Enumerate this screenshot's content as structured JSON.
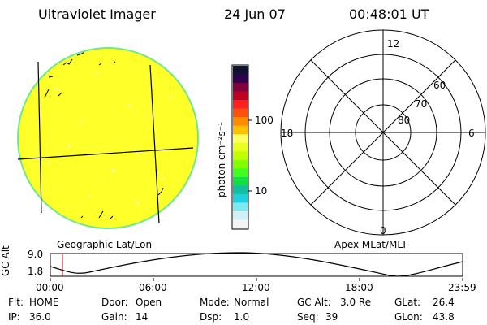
{
  "header": {
    "title": "Ultraviolet Imager",
    "date": "24 Jun 07",
    "time": "00:48:01 UT"
  },
  "colorbar": {
    "unit_label": "photon cm⁻²s⁻¹",
    "ticks": [
      "100",
      "10"
    ],
    "colors": [
      "#101030",
      "#300050",
      "#800040",
      "#c00020",
      "#ff2020",
      "#ff5010",
      "#ff8c00",
      "#ffc000",
      "#ffff60",
      "#e8ff20",
      "#c0ff00",
      "#80ff00",
      "#40ff20",
      "#10e040",
      "#10c0a0",
      "#20d0e0",
      "#80e8f0",
      "#d0f0f8",
      "#f4f4f4"
    ]
  },
  "globe_panel": {
    "label": "Geographic Lat/Lon",
    "fill_color": "#ffff2a"
  },
  "polar_panel": {
    "label": "Apex MLat/MLT",
    "mlt_labels": {
      "top": "12",
      "left": "18",
      "right": "6",
      "bottom": "0"
    },
    "lat_labels": [
      "60",
      "70",
      "80"
    ]
  },
  "altitude_plot": {
    "ylabel": "GC Alt",
    "y_ticks": [
      "9.0",
      "1.8"
    ],
    "x_ticks": [
      "00:00",
      "06:00",
      "12:00",
      "18:00",
      "23:59"
    ]
  },
  "status": {
    "row1": [
      {
        "label": "Flt:",
        "value": "HOME"
      },
      {
        "label": "Door:",
        "value": "Open"
      },
      {
        "label": "Mode:",
        "value": "Normal"
      },
      {
        "label": "GC Alt:",
        "value": "3.0 Re"
      },
      {
        "label": "GLat:",
        "value": "26.4"
      }
    ],
    "row2": [
      {
        "label": "IP:",
        "value": "36.0"
      },
      {
        "label": "Gain:",
        "value": "14"
      },
      {
        "label": "Dsp:",
        "value": "1.0"
      },
      {
        "label": "Seq:",
        "value": "39"
      },
      {
        "label": "GLon:",
        "value": "43.8"
      }
    ]
  }
}
